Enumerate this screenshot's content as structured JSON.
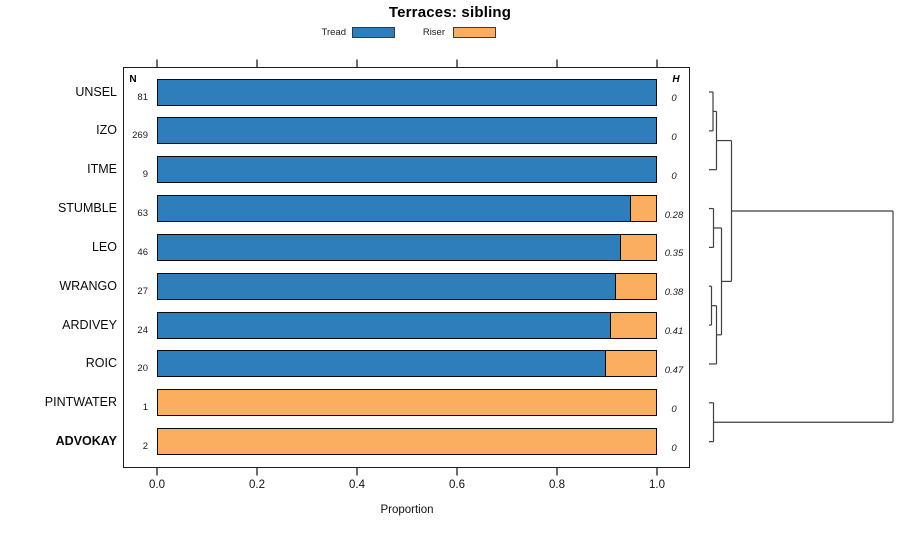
{
  "title": "Terraces: sibling",
  "legend": {
    "items": [
      {
        "label": "Tread",
        "color": "#2E7EBC"
      },
      {
        "label": "Riser",
        "color": "#FBAD60"
      }
    ]
  },
  "columns": {
    "n_header": "N",
    "h_header": "H"
  },
  "x_axis": {
    "label": "Proportion",
    "ticks": [
      "0.0",
      "0.2",
      "0.4",
      "0.6",
      "0.8",
      "1.0"
    ]
  },
  "colors": {
    "tread": "#2E7EBC",
    "riser": "#FBAD60",
    "bar_border": "#0b0b0b",
    "dendro_line": "#3f3f3f"
  },
  "chart_data": {
    "type": "bar",
    "orientation": "horizontal",
    "stacked": true,
    "title": "Terraces: sibling",
    "xlabel": "Proportion",
    "xlim": [
      0.0,
      1.0
    ],
    "grid": false,
    "legend_position": "top",
    "series_names": [
      "Tread",
      "Riser"
    ],
    "categories": [
      "UNSEL",
      "IZO",
      "ITME",
      "STUMBLE",
      "LEO",
      "WRANGO",
      "ARDIVEY",
      "ROIC",
      "PINTWATER",
      "ADVOKAY"
    ],
    "rows": [
      {
        "label": "UNSEL",
        "n": "81",
        "tread": 1.0,
        "riser": 0.0,
        "h": "0",
        "bold": false
      },
      {
        "label": "IZO",
        "n": "269",
        "tread": 1.0,
        "riser": 0.0,
        "h": "0",
        "bold": false
      },
      {
        "label": "ITME",
        "n": "9",
        "tread": 1.0,
        "riser": 0.0,
        "h": "0",
        "bold": false
      },
      {
        "label": "STUMBLE",
        "n": "63",
        "tread": 0.95,
        "riser": 0.05,
        "h": "0.28",
        "bold": false
      },
      {
        "label": "LEO",
        "n": "46",
        "tread": 0.93,
        "riser": 0.07,
        "h": "0.35",
        "bold": false
      },
      {
        "label": "WRANGO",
        "n": "27",
        "tread": 0.92,
        "riser": 0.08,
        "h": "0.38",
        "bold": false
      },
      {
        "label": "ARDIVEY",
        "n": "24",
        "tread": 0.91,
        "riser": 0.09,
        "h": "0.41",
        "bold": false
      },
      {
        "label": "ROIC",
        "n": "20",
        "tread": 0.9,
        "riser": 0.1,
        "h": "0.47",
        "bold": false
      },
      {
        "label": "PINTWATER",
        "n": "1",
        "tread": 0.0,
        "riser": 1.0,
        "h": "0",
        "bold": false
      },
      {
        "label": "ADVOKAY",
        "n": "2",
        "tread": 0.0,
        "riser": 1.0,
        "h": "0",
        "bold": true
      }
    ],
    "dendrogram": {
      "heights_unit": "px-offset-from-leaf-line",
      "tree": {
        "h": 184,
        "children": [
          {
            "h": 22.5,
            "children": [
              {
                "h": 7.5,
                "children": [
                  {
                    "h": 4,
                    "children": [
                      {
                        "leaf": 0
                      },
                      {
                        "leaf": 1
                      }
                    ]
                  },
                  {
                    "leaf": 2
                  }
                ]
              },
              {
                "h": 12.5,
                "children": [
                  {
                    "h": 4.5,
                    "children": [
                      {
                        "leaf": 3
                      },
                      {
                        "leaf": 4
                      }
                    ]
                  },
                  {
                    "h": 7.5,
                    "children": [
                      {
                        "h": 2.5,
                        "children": [
                          {
                            "leaf": 5
                          },
                          {
                            "leaf": 6
                          }
                        ]
                      },
                      {
                        "leaf": 7
                      }
                    ]
                  }
                ]
              }
            ]
          },
          {
            "h": 4.5,
            "children": [
              {
                "leaf": 8
              },
              {
                "leaf": 9
              }
            ]
          }
        ]
      }
    }
  }
}
